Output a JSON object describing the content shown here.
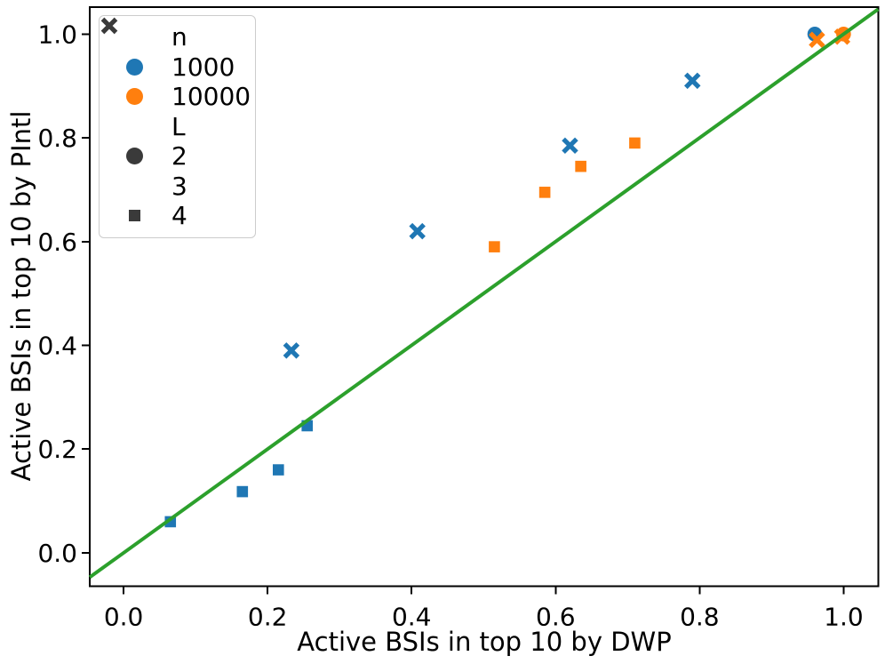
{
  "chart_data": {
    "type": "scatter",
    "xlabel": "Active BSIs in top 10 by DWP",
    "ylabel": "Active BSIs in top 10 by PIntl",
    "xlim": [
      -0.047,
      1.048
    ],
    "ylim": [
      -0.064,
      1.052
    ],
    "x_tick_labels": [
      "0.0",
      "0.2",
      "0.4",
      "0.6",
      "0.8",
      "1.0"
    ],
    "y_tick_labels": [
      "0.0",
      "0.2",
      "0.4",
      "0.6",
      "0.8",
      "1.0"
    ],
    "grid": false,
    "identity_line": {
      "comment_role": "diagonal reference line y = x",
      "color": "#2ca02c",
      "x": [
        -0.047,
        1.048
      ],
      "y": [
        -0.047,
        1.048
      ]
    },
    "series": [
      {
        "n": "1000",
        "L": "2",
        "marker": "circle",
        "color": "#1f77b4",
        "points": [
          [
            0.96,
            1.0
          ]
        ]
      },
      {
        "n": "1000",
        "L": "3",
        "marker": "x",
        "color": "#1f77b4",
        "points": [
          [
            0.233,
            0.39
          ],
          [
            0.408,
            0.62
          ],
          [
            0.62,
            0.785
          ],
          [
            0.79,
            0.91
          ]
        ]
      },
      {
        "n": "1000",
        "L": "4",
        "marker": "square",
        "color": "#1f77b4",
        "points": [
          [
            0.065,
            0.06
          ],
          [
            0.165,
            0.118
          ],
          [
            0.215,
            0.16
          ],
          [
            0.255,
            0.245
          ]
        ]
      },
      {
        "n": "10000",
        "L": "2",
        "marker": "circle",
        "color": "#ff7f0e",
        "points": [
          [
            1.0,
            1.0
          ]
        ]
      },
      {
        "n": "10000",
        "L": "3",
        "marker": "x",
        "color": "#ff7f0e",
        "points": [
          [
            0.963,
            0.989
          ],
          [
            0.998,
            0.995
          ]
        ]
      },
      {
        "n": "10000",
        "L": "4",
        "marker": "square",
        "color": "#ff7f0e",
        "points": [
          [
            0.515,
            0.59
          ],
          [
            0.585,
            0.695
          ],
          [
            0.635,
            0.745
          ],
          [
            0.71,
            0.79
          ]
        ]
      }
    ],
    "legend": {
      "position": "upper-left",
      "sections": [
        {
          "title": "n",
          "items": [
            {
              "label": "1000",
              "marker": "circle",
              "color": "#1f77b4"
            },
            {
              "label": "10000",
              "marker": "circle",
              "color": "#ff7f0e"
            }
          ]
        },
        {
          "title": "L",
          "items": [
            {
              "label": "2",
              "marker": "circle",
              "color": "#3a3a3a"
            },
            {
              "label": "3",
              "marker": "x",
              "color": "#3a3a3a"
            },
            {
              "label": "4",
              "marker": "square",
              "color": "#3a3a3a"
            }
          ]
        }
      ]
    }
  },
  "colors": {
    "series_n1000": "#1f77b4",
    "series_n10000": "#ff7f0e",
    "identity_line": "#2ca02c",
    "legend_neutral_marker": "#3a3a3a",
    "spine": "#000000",
    "background": "#ffffff"
  }
}
